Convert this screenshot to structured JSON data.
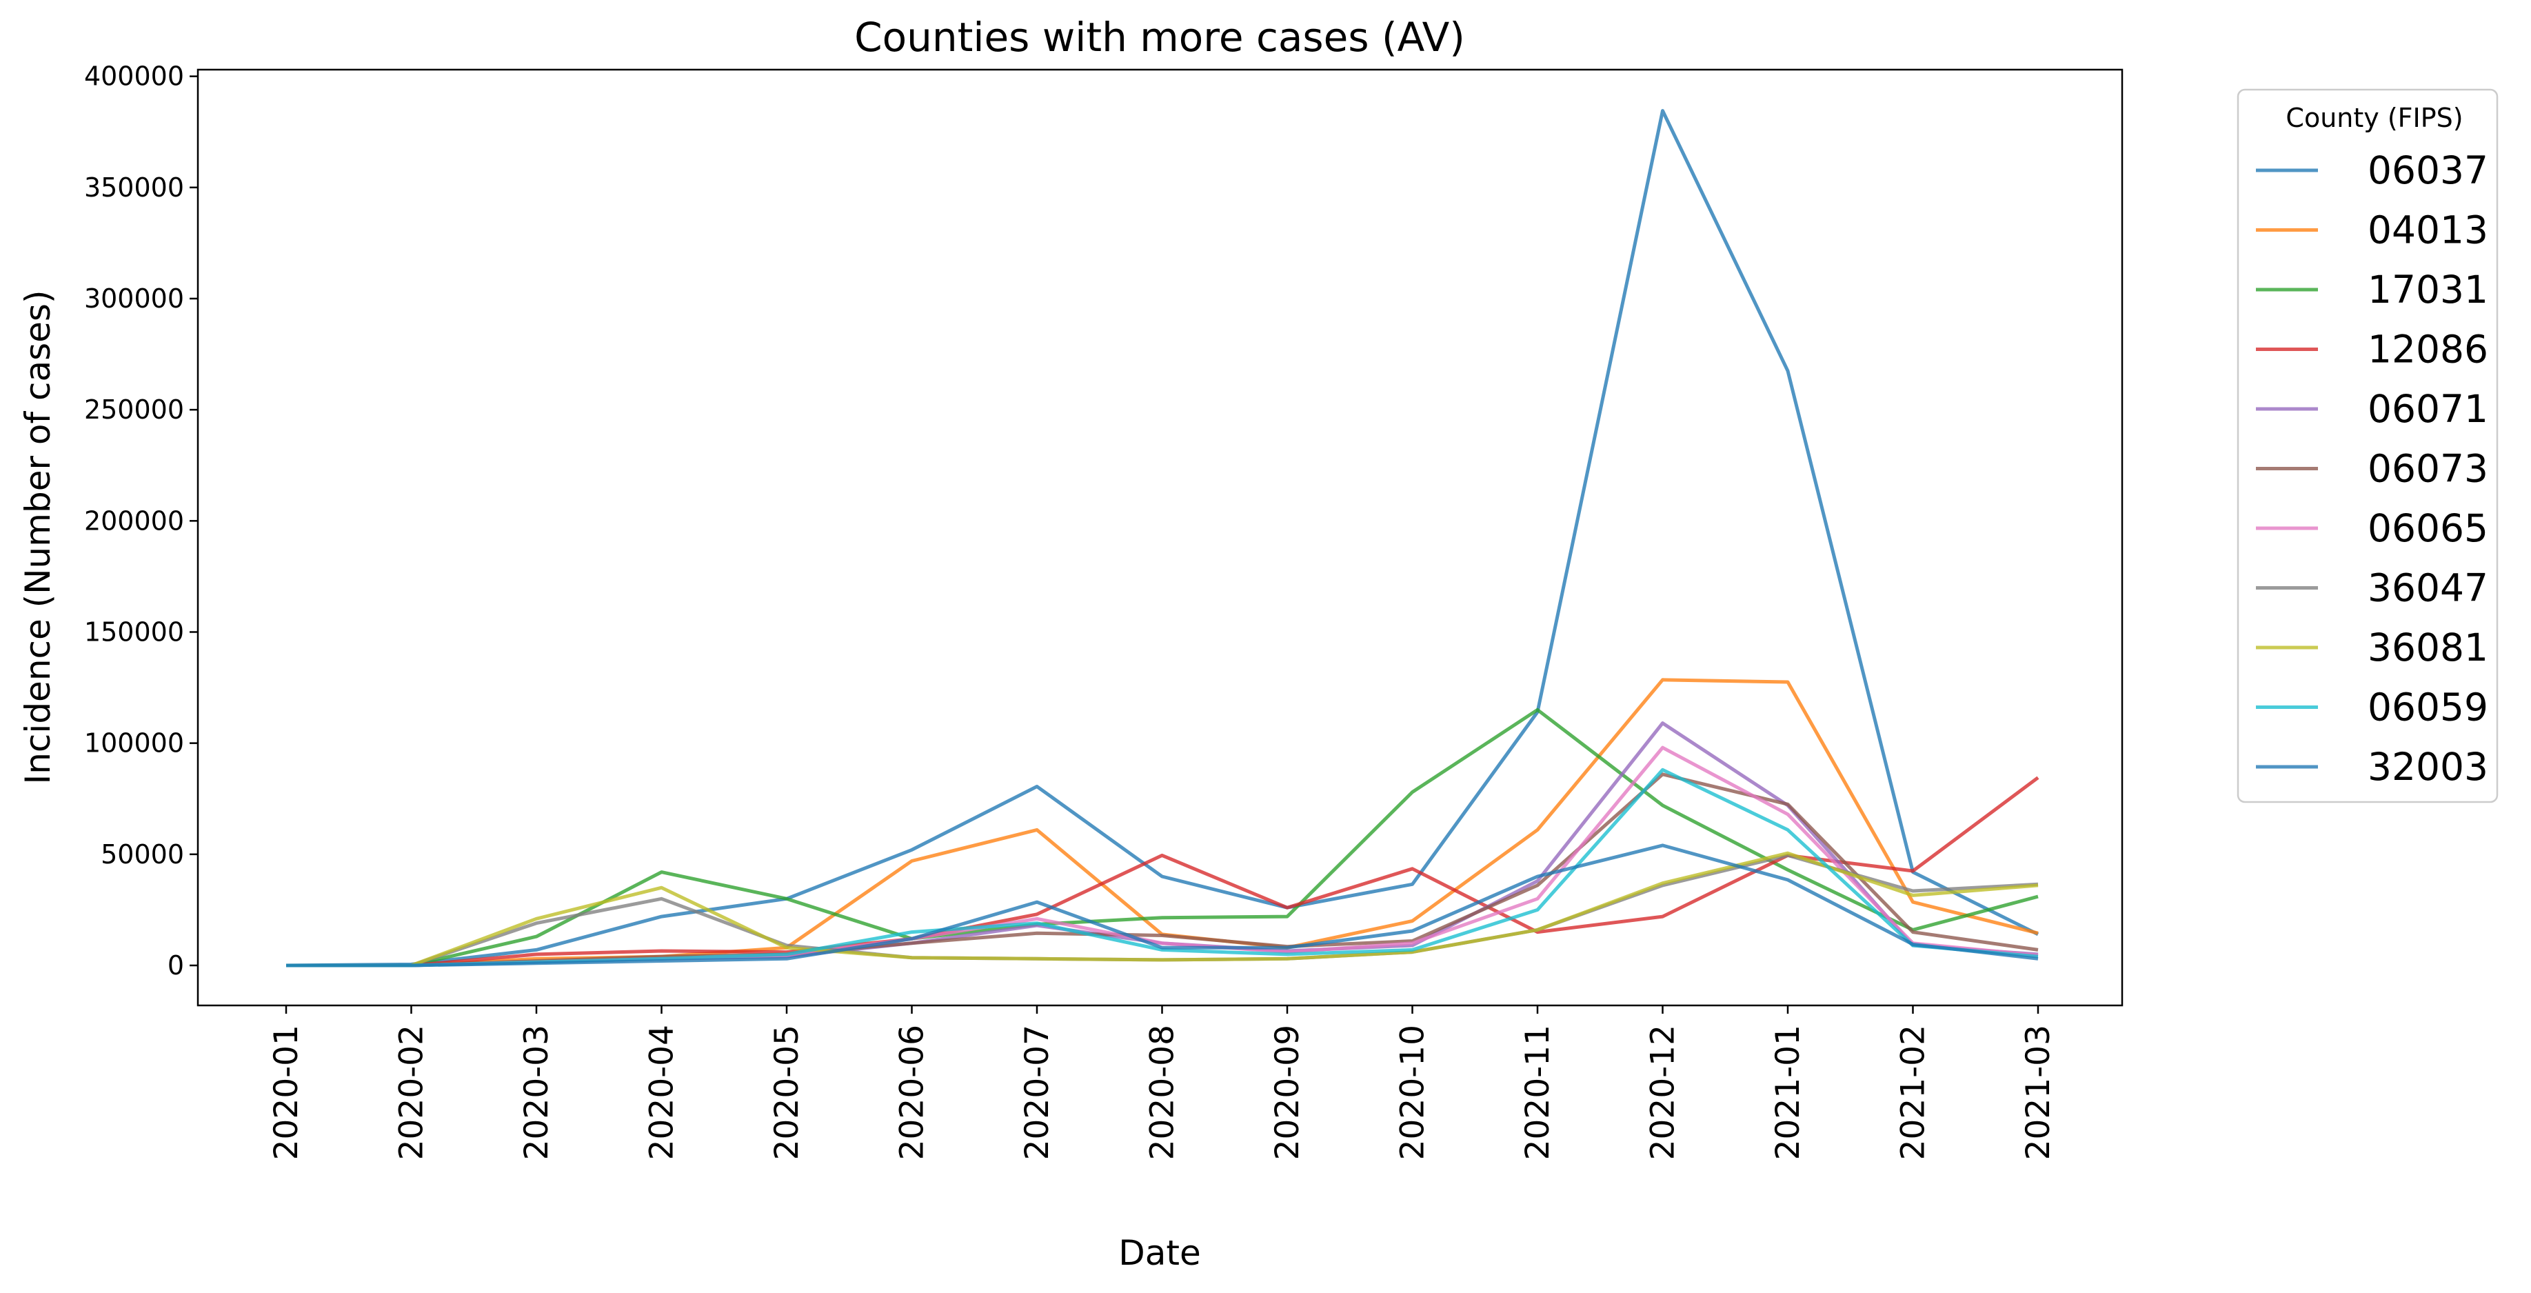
{
  "chart_data": {
    "type": "line",
    "title": "Counties with more cases (AV)",
    "xlabel": "Date",
    "ylabel": "Incidence (Number of cases)",
    "ylim": [
      -18000,
      403000
    ],
    "yticks": [
      0,
      50000,
      100000,
      150000,
      200000,
      250000,
      300000,
      350000,
      400000
    ],
    "categories": [
      "2020-01",
      "2020-02",
      "2020-03",
      "2020-04",
      "2020-05",
      "2020-06",
      "2020-07",
      "2020-08",
      "2020-09",
      "2020-10",
      "2020-11",
      "2020-12",
      "2021-01",
      "2021-02",
      "2021-03"
    ],
    "grid": false,
    "legend": {
      "title": "County (FIPS)",
      "placement": "outside-right"
    },
    "series": [
      {
        "name": "06037",
        "color": "#1f77b4",
        "values": [
          0,
          500,
          7000,
          22000,
          30000,
          52000,
          80500,
          40000,
          26000,
          36500,
          114000,
          384500,
          267500,
          42000,
          14000
        ]
      },
      {
        "name": "04013",
        "color": "#ff7f0e",
        "values": [
          0,
          0,
          3000,
          4000,
          8000,
          47000,
          61000,
          14000,
          8000,
          20000,
          61000,
          128500,
          127500,
          28500,
          14500
        ]
      },
      {
        "name": "17031",
        "color": "#2ca02c",
        "values": [
          0,
          0,
          13000,
          42000,
          30000,
          12000,
          18500,
          21500,
          22000,
          78000,
          115000,
          72000,
          43000,
          16000,
          31000
        ]
      },
      {
        "name": "12086",
        "color": "#d62728",
        "values": [
          0,
          0,
          5000,
          6500,
          6000,
          12000,
          23000,
          49500,
          26000,
          43500,
          15000,
          22000,
          49500,
          42500,
          84500
        ]
      },
      {
        "name": "06071",
        "color": "#9467bd",
        "values": [
          0,
          0,
          1500,
          3000,
          4000,
          10000,
          18000,
          10000,
          6500,
          9000,
          38000,
          109000,
          72000,
          9000,
          5000
        ]
      },
      {
        "name": "06073",
        "color": "#8c564b",
        "values": [
          0,
          0,
          2000,
          4000,
          5000,
          10000,
          14500,
          13500,
          8500,
          11000,
          36000,
          86000,
          72500,
          15000,
          7000
        ]
      },
      {
        "name": "06065",
        "color": "#e377c2",
        "values": [
          0,
          0,
          1500,
          3000,
          4500,
          12000,
          21000,
          10000,
          6000,
          10000,
          30000,
          98000,
          68000,
          10000,
          4500
        ]
      },
      {
        "name": "36047",
        "color": "#7f7f7f",
        "values": [
          0,
          0,
          19000,
          30000,
          9000,
          3500,
          3000,
          2500,
          3000,
          6000,
          16000,
          36000,
          49500,
          33500,
          36500
        ]
      },
      {
        "name": "36081",
        "color": "#bcbd22",
        "values": [
          0,
          0,
          21000,
          35000,
          8000,
          3500,
          3000,
          2500,
          3000,
          6000,
          16000,
          37000,
          50500,
          31500,
          36000
        ]
      },
      {
        "name": "06059",
        "color": "#17becf",
        "values": [
          0,
          0,
          1500,
          3000,
          5000,
          15000,
          19000,
          7000,
          5000,
          7000,
          25000,
          88000,
          61000,
          9000,
          4000
        ]
      },
      {
        "name": "32003",
        "color": "#1f77b4",
        "values": [
          0,
          0,
          1000,
          2000,
          3000,
          12000,
          28500,
          8000,
          8000,
          15500,
          40000,
          54000,
          38500,
          9500,
          3000
        ]
      }
    ]
  }
}
